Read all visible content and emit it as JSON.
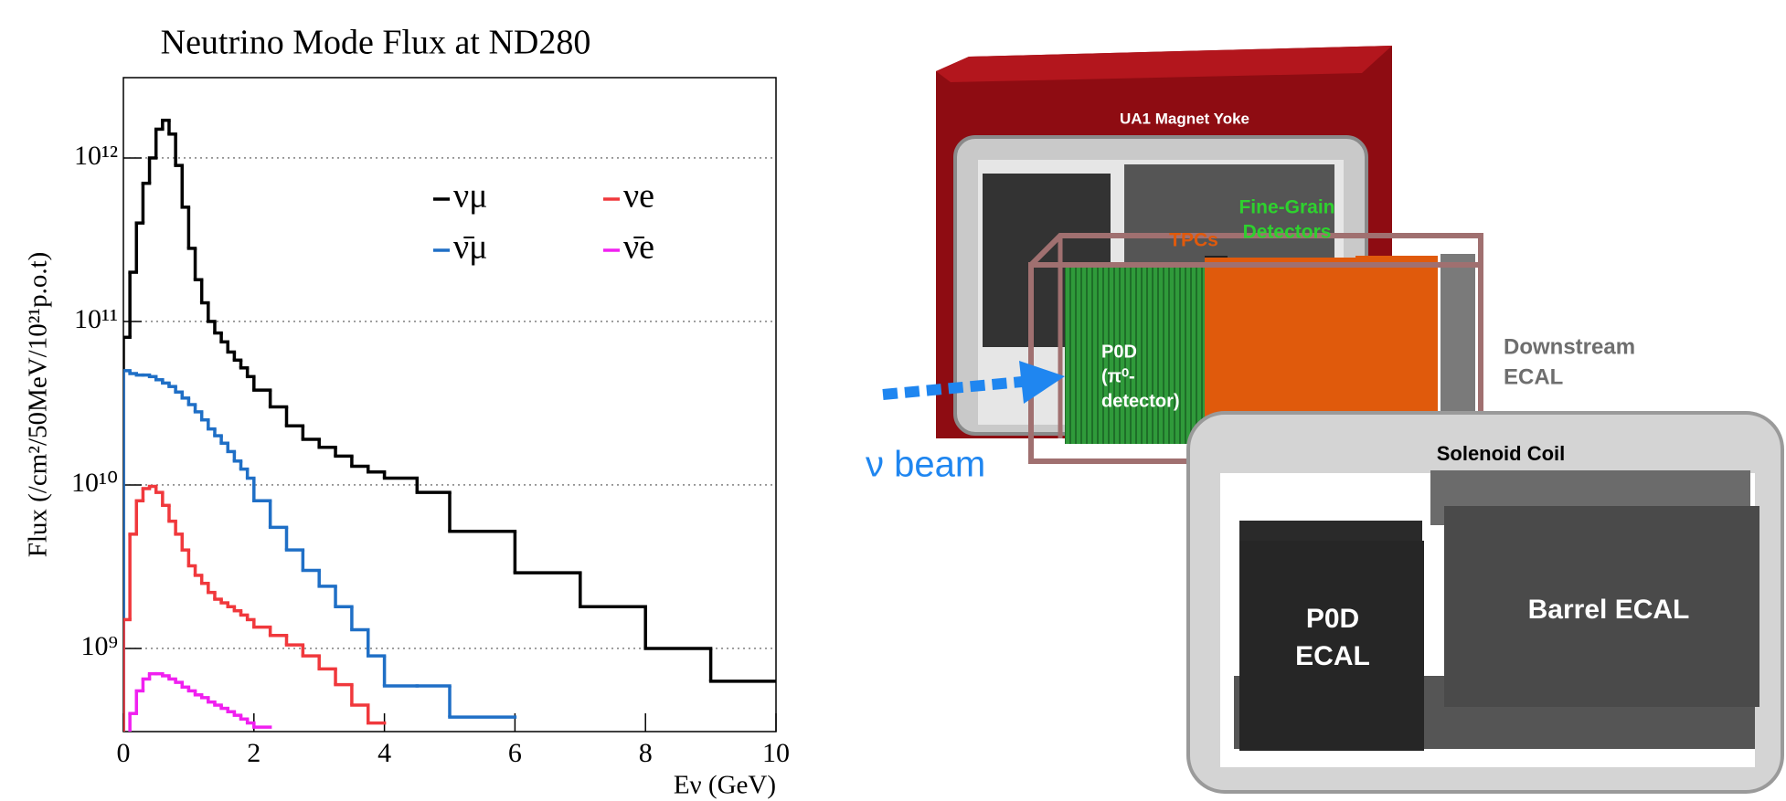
{
  "chart_data": {
    "type": "step_histogram",
    "title": "Neutrino Mode Flux at ND280",
    "x_label": "Eν (GeV)",
    "y_label": "Flux (/cm²/50MeV/10²¹p.o.t)",
    "log_y": true,
    "grid": true,
    "xlim": [
      0,
      10
    ],
    "ylim": [
      310000000,
      3100000000000
    ],
    "xticks": [
      0,
      2,
      4,
      6,
      8,
      10
    ],
    "yticks": [
      {
        "value": 1000000000,
        "label": "10⁹"
      },
      {
        "value": 10000000000,
        "label": "10¹⁰"
      },
      {
        "value": 100000000000,
        "label": "10¹¹"
      },
      {
        "value": 1000000000000,
        "label": "10¹²"
      }
    ],
    "bins": [
      0,
      0.1,
      0.2,
      0.3,
      0.4,
      0.5,
      0.6,
      0.7,
      0.8,
      0.9,
      1.0,
      1.1,
      1.2,
      1.3,
      1.4,
      1.5,
      1.6,
      1.7,
      1.8,
      1.9,
      2.0,
      2.25,
      2.5,
      2.75,
      3.0,
      3.25,
      3.5,
      3.75,
      4.0,
      4.5,
      5,
      6,
      7,
      8,
      9,
      10
    ],
    "series": [
      {
        "name": "νμ",
        "color": "#000000",
        "values": [
          80000000000,
          200000000000,
          400000000000,
          700000000000,
          1000000000000,
          1500000000000,
          1700000000000,
          1400000000000,
          900000000000,
          500000000000,
          280000000000,
          180000000000,
          130000000000,
          100000000000,
          85000000000,
          75000000000,
          65000000000,
          58000000000,
          52000000000,
          46000000000,
          38000000000,
          30000000000,
          23000000000,
          19000000000,
          17000000000,
          15000000000,
          13000000000,
          12000000000,
          11000000000,
          9000000000,
          5200000000,
          2900000000,
          1800000000,
          1000000000,
          630000000
        ]
      },
      {
        "name": "ν̄μ",
        "color": "#1f6fc6",
        "values": [
          50000000000,
          48000000000,
          47000000000,
          47000000000,
          46000000000,
          44000000000,
          42000000000,
          40000000000,
          37000000000,
          34000000000,
          31000000000,
          28000000000,
          25000000000,
          22000000000,
          20000000000,
          18000000000,
          16000000000,
          14000000000,
          12500000000,
          11000000000,
          8000000000,
          5500000000,
          4000000000,
          3000000000,
          2400000000,
          1800000000,
          1300000000,
          900000000,
          590000000,
          590000000,
          380000000,
          null,
          null,
          null,
          null
        ]
      },
      {
        "name": "νe",
        "color": "#f0383c",
        "values": [
          1500000000,
          5000000000,
          8000000000,
          9500000000,
          9800000000,
          9000000000,
          7500000000,
          6000000000,
          5000000000,
          4000000000,
          3200000000,
          2800000000,
          2500000000,
          2200000000,
          2000000000,
          1900000000,
          1800000000,
          1700000000,
          1600000000,
          1500000000,
          1350000000,
          1200000000,
          1050000000,
          900000000,
          750000000,
          600000000,
          450000000,
          350000000,
          null,
          null,
          null,
          null,
          null,
          null,
          null
        ]
      },
      {
        "name": "ν̄e",
        "color": "#f020f0",
        "values": [
          null,
          400000000,
          550000000,
          650000000,
          700000000,
          700000000,
          680000000,
          650000000,
          620000000,
          580000000,
          550000000,
          520000000,
          500000000,
          470000000,
          450000000,
          430000000,
          410000000,
          390000000,
          370000000,
          350000000,
          330000000,
          null,
          null,
          null,
          null,
          null,
          null,
          null,
          null,
          null,
          null,
          null,
          null,
          null,
          null
        ]
      }
    ]
  },
  "diagram": {
    "yoke": "UA1 Magnet Yoke",
    "fgd": [
      "Fine-Grain",
      "Detectors"
    ],
    "tpc": "TPCs",
    "p0d": [
      "P0D",
      "(π⁰-",
      "detector)"
    ],
    "downstream": [
      "Downstream",
      "ECAL"
    ],
    "beam": "ν beam",
    "solenoid": "Solenoid Coil",
    "p0d_ecal": [
      "P0D",
      "ECAL"
    ],
    "barrel": "Barrel ECAL"
  }
}
